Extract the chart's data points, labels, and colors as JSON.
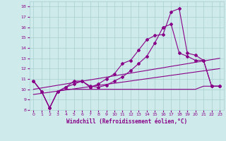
{
  "xlabel": "Windchill (Refroidissement éolien,°C)",
  "bg_color": "#ceeaea",
  "grid_color": "#a8cece",
  "line_color": "#880088",
  "xlim": [
    -0.5,
    23.5
  ],
  "ylim": [
    8,
    18.5
  ],
  "xticks": [
    0,
    1,
    2,
    3,
    4,
    5,
    6,
    7,
    8,
    9,
    10,
    11,
    12,
    13,
    14,
    15,
    16,
    17,
    18,
    19,
    20,
    21,
    22,
    23
  ],
  "yticks": [
    8,
    9,
    10,
    11,
    12,
    13,
    14,
    15,
    16,
    17,
    18
  ],
  "line1_x": [
    0,
    1,
    2,
    3,
    4,
    5,
    6,
    7,
    8,
    9,
    10,
    11,
    12,
    13,
    14,
    15,
    16,
    17,
    18,
    19,
    20,
    21,
    22,
    23
  ],
  "line1_y": [
    10.8,
    9.8,
    8.2,
    9.8,
    10.0,
    10.0,
    10.0,
    10.0,
    10.0,
    10.0,
    10.0,
    10.0,
    10.0,
    10.0,
    10.0,
    10.0,
    10.0,
    10.0,
    10.0,
    10.0,
    10.0,
    10.3,
    10.3,
    10.3
  ],
  "line2_x": [
    0,
    1,
    2,
    3,
    4,
    5,
    6,
    7,
    8,
    9,
    10,
    11,
    12,
    13,
    14,
    15,
    16,
    17,
    18,
    19,
    20,
    21,
    22,
    23
  ],
  "line2_y": [
    10.8,
    9.8,
    8.2,
    9.8,
    10.2,
    10.8,
    10.8,
    10.2,
    10.5,
    11.0,
    11.5,
    12.5,
    12.8,
    13.8,
    14.8,
    15.2,
    15.3,
    17.5,
    17.8,
    13.5,
    13.3,
    12.8,
    10.3,
    10.3
  ],
  "line3_x": [
    0,
    1,
    2,
    3,
    4,
    5,
    6,
    7,
    8,
    9,
    10,
    11,
    12,
    13,
    14,
    15,
    16,
    17,
    18,
    19,
    20,
    21,
    22,
    23
  ],
  "line3_y": [
    10.8,
    9.8,
    8.2,
    9.8,
    10.2,
    10.5,
    10.8,
    10.3,
    10.2,
    10.4,
    10.8,
    11.2,
    11.8,
    12.5,
    13.2,
    14.5,
    16.0,
    16.3,
    13.5,
    13.2,
    12.8,
    12.8,
    10.3,
    10.3
  ],
  "line4_x": [
    0,
    23
  ],
  "line4_y": [
    10.0,
    13.0
  ],
  "line5_x": [
    0,
    23
  ],
  "line5_y": [
    9.5,
    12.0
  ]
}
